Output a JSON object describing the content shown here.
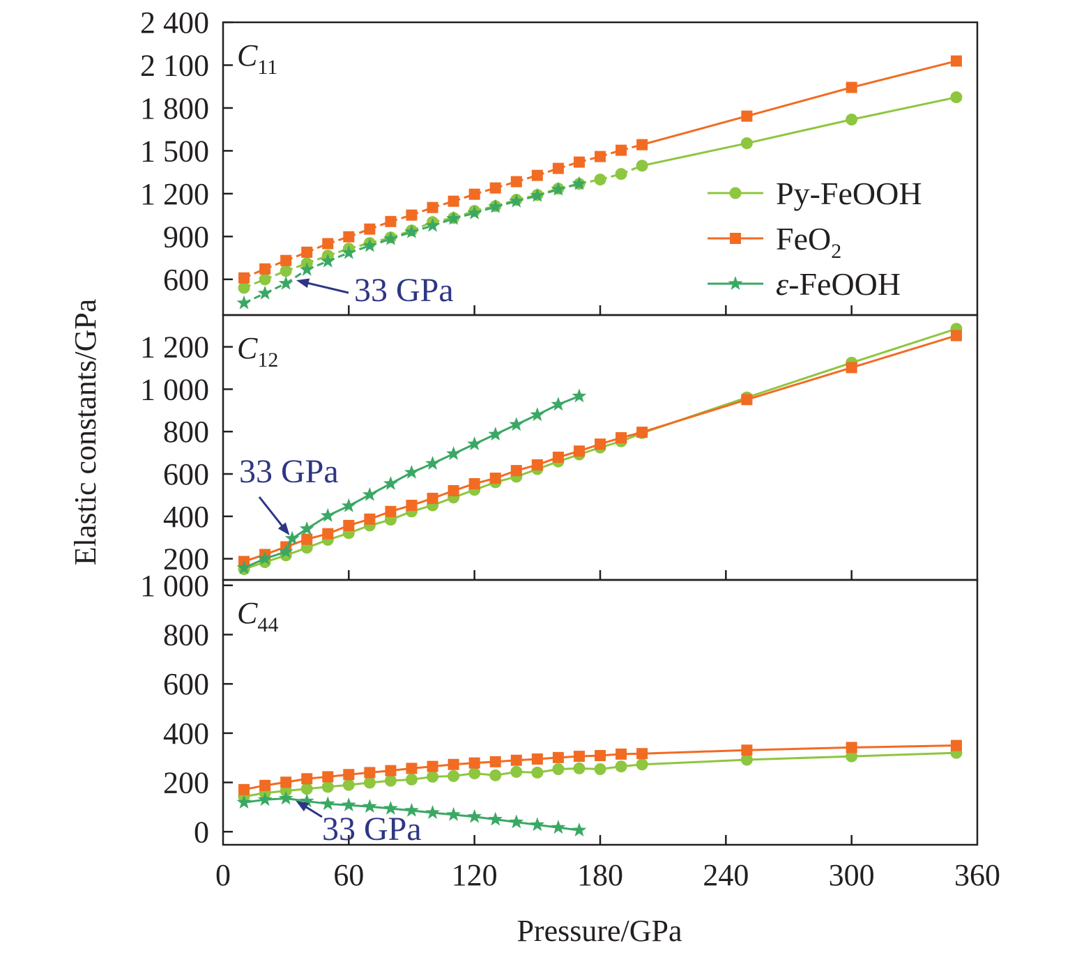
{
  "chart_data": {
    "type": "line",
    "xlabel": "Pressure/GPa",
    "ylabel": "Elastic constants/GPa",
    "xlim": [
      0,
      360
    ],
    "xticks": [
      0,
      60,
      120,
      180,
      240,
      300,
      360
    ],
    "colors": {
      "Py-FeOOH": "#8dc63f",
      "FeO2": "#f26b22",
      "e-FeOOH": "#3aa864",
      "annotation": "#2e3684"
    },
    "legend": {
      "placement": "right, inside top panel",
      "entries": [
        {
          "name": "Py-FeOOH",
          "marker": "circle"
        },
        {
          "name": "FeO",
          "sub": "2",
          "marker": "square"
        },
        {
          "name": "-FeOOH",
          "prefix": "ε",
          "marker": "star"
        }
      ]
    },
    "panels": [
      {
        "label": "C",
        "label_sub": "11",
        "ylim": [
          350,
          2400
        ],
        "yticks": [
          600,
          900,
          1200,
          1500,
          1800,
          2100,
          2400
        ],
        "ytick_labels": [
          "600",
          "900",
          "1 200",
          "1 500",
          "1 800",
          "2 100",
          "2 400"
        ],
        "dashed_until": 200,
        "annotation": {
          "text": "33 GPa",
          "point": [
            33,
            600
          ]
        },
        "series": [
          {
            "name": "Py-FeOOH",
            "x": [
              10,
              20,
              30,
              40,
              50,
              60,
              70,
              80,
              90,
              100,
              110,
              120,
              130,
              140,
              150,
              160,
              170,
              180,
              190,
              200,
              250,
              300,
              350
            ],
            "values": [
              541,
              600,
              659,
              712,
              766,
              815,
              854,
              893,
              942,
              1001,
              1030,
              1079,
              1113,
              1157,
              1191,
              1235,
              1269,
              1299,
              1338,
              1396,
              1553,
              1719,
              1875
            ]
          },
          {
            "name": "FeO2",
            "x": [
              10,
              20,
              30,
              40,
              50,
              60,
              70,
              80,
              90,
              100,
              110,
              120,
              130,
              140,
              150,
              160,
              170,
              180,
              190,
              200,
              250,
              300,
              350
            ],
            "values": [
              610,
              673,
              732,
              790,
              850,
              898,
              952,
              1005,
              1050,
              1103,
              1147,
              1196,
              1240,
              1284,
              1328,
              1377,
              1421,
              1460,
              1504,
              1543,
              1743,
              1944,
              2129
            ]
          },
          {
            "name": "e-FeOOH",
            "x": [
              10,
              20,
              30,
              40,
              50,
              60,
              70,
              80,
              90,
              100,
              110,
              120,
              130,
              140,
              150,
              160,
              170
            ],
            "values": [
              434,
              502,
              571,
              668,
              727,
              786,
              835,
              883,
              932,
              976,
              1025,
              1064,
              1108,
              1147,
              1186,
              1230,
              1269
            ]
          }
        ]
      },
      {
        "label": "C",
        "label_sub": "12",
        "ylim": [
          100,
          1350
        ],
        "yticks": [
          200,
          400,
          600,
          800,
          1000,
          1200
        ],
        "ytick_labels": [
          "200",
          "400",
          "600",
          "800",
          "1 000",
          "1 200"
        ],
        "annotation": {
          "text": "33 GPa",
          "point": [
            33,
            295
          ]
        },
        "series": [
          {
            "name": "Py-FeOOH",
            "x": [
              10,
              20,
              30,
              40,
              50,
              60,
              70,
              80,
              90,
              100,
              110,
              120,
              130,
              140,
              150,
              160,
              170,
              180,
              190,
              200,
              250,
              300,
              350
            ],
            "values": [
              151,
              184,
              216,
              252,
              289,
              321,
              357,
              384,
              423,
              452,
              489,
              525,
              561,
              587,
              623,
              659,
              692,
              725,
              754,
              793,
              961,
              1125,
              1285
            ]
          },
          {
            "name": "FeO2",
            "x": [
              10,
              20,
              30,
              40,
              50,
              60,
              70,
              80,
              90,
              100,
              110,
              120,
              130,
              140,
              150,
              160,
              170,
              180,
              190,
              200,
              250,
              300,
              350
            ],
            "values": [
              187,
              220,
              256,
              292,
              318,
              357,
              387,
              423,
              452,
              485,
              521,
              554,
              580,
              616,
              643,
              679,
              708,
              741,
              771,
              797,
              951,
              1102,
              1253
            ]
          },
          {
            "name": "e-FeOOH",
            "x": [
              10,
              20,
              30,
              33,
              40,
              50,
              60,
              70,
              80,
              90,
              100,
              110,
              120,
              130,
              140,
              150,
              160,
              170
            ],
            "values": [
              157,
              200,
              233,
              295,
              341,
              403,
              449,
              502,
              554,
              607,
              649,
              695,
              741,
              787,
              833,
              879,
              928,
              967
            ]
          }
        ]
      },
      {
        "label": "C",
        "label_sub": "44",
        "ylim": [
          -53,
          1022
        ],
        "yticks": [
          0,
          200,
          400,
          600,
          800,
          1000
        ],
        "ytick_labels": [
          "0",
          "200",
          "400",
          "600",
          "800",
          "1 000"
        ],
        "annotation": {
          "text": "33 GPa",
          "point": [
            33,
            135
          ]
        },
        "series": [
          {
            "name": "Py-FeOOH",
            "x": [
              10,
              20,
              30,
              40,
              50,
              60,
              70,
              80,
              90,
              100,
              110,
              120,
              130,
              140,
              150,
              160,
              170,
              180,
              190,
              200,
              250,
              300,
              350
            ],
            "values": [
              143,
              157,
              166,
              174,
              182,
              190,
              199,
              207,
              212,
              223,
              226,
              237,
              229,
              243,
              240,
              254,
              257,
              254,
              265,
              273,
              292,
              306,
              320
            ]
          },
          {
            "name": "FeO2",
            "x": [
              10,
              20,
              30,
              40,
              50,
              60,
              70,
              80,
              90,
              100,
              110,
              120,
              130,
              140,
              150,
              160,
              170,
              180,
              190,
              200,
              250,
              300,
              350
            ],
            "values": [
              171,
              188,
              201,
              215,
              223,
              232,
              240,
              248,
              257,
              265,
              273,
              279,
              284,
              290,
              295,
              301,
              306,
              309,
              315,
              317,
              331,
              342,
              350
            ]
          },
          {
            "name": "e-FeOOH",
            "x": [
              10,
              20,
              30,
              40,
              50,
              60,
              70,
              80,
              90,
              100,
              110,
              120,
              130,
              140,
              150,
              160,
              170
            ],
            "values": [
              119,
              130,
              135,
              124,
              113,
              108,
              102,
              94,
              86,
              77,
              69,
              61,
              50,
              39,
              28,
              17,
              6
            ]
          }
        ]
      }
    ]
  }
}
